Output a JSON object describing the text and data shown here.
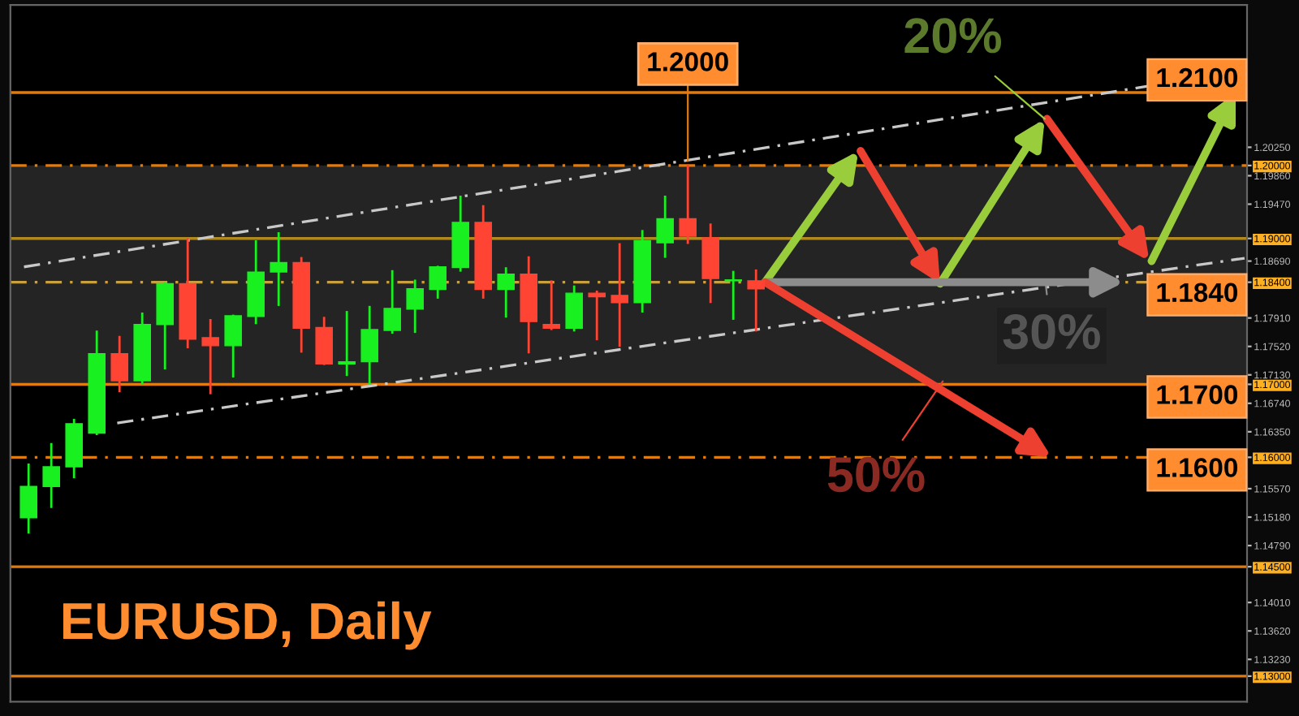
{
  "chart_data": {
    "type": "candlestick",
    "title": "EURUSD, Daily",
    "categories": [
      null,
      null,
      null,
      null,
      null,
      null,
      null,
      null,
      null,
      null,
      null,
      null,
      null,
      null,
      null,
      null,
      null,
      null,
      null,
      null,
      null,
      null,
      null,
      null,
      null,
      null,
      null,
      null,
      null,
      null,
      null,
      null,
      null,
      null,
      null,
      null,
      null,
      null,
      null,
      null,
      null,
      null,
      null,
      null,
      null,
      null,
      null,
      null,
      null,
      null,
      null,
      null,
      null,
      null
    ],
    "ohlc": [
      [
        1.1517,
        1.159,
        1.1497,
        1.156
      ],
      [
        1.156,
        1.1618,
        1.1532,
        1.1587
      ],
      [
        1.1587,
        1.1651,
        1.1573,
        1.1646
      ],
      [
        1.1633,
        1.1772,
        1.1632,
        1.1742
      ],
      [
        1.1742,
        1.1765,
        1.1691,
        1.1705
      ],
      [
        1.1705,
        1.1797,
        1.1702,
        1.1782
      ],
      [
        1.1782,
        1.1838,
        1.1722,
        1.1838
      ],
      [
        1.1838,
        1.1899,
        1.1751,
        1.1762
      ],
      [
        1.1764,
        1.1788,
        1.1688,
        1.1753
      ],
      [
        1.1753,
        1.1794,
        1.1711,
        1.1794
      ],
      [
        1.1793,
        1.1896,
        1.1784,
        1.1854
      ],
      [
        1.1854,
        1.1907,
        1.1809,
        1.1867
      ],
      [
        1.1867,
        1.1873,
        1.1745,
        1.1777
      ],
      [
        1.1778,
        1.1791,
        1.1728,
        1.1728
      ],
      [
        1.1728,
        1.1799,
        1.1713,
        1.1731
      ],
      [
        1.1731,
        1.1806,
        1.1701,
        1.1775
      ],
      [
        1.1774,
        1.1855,
        1.1771,
        1.1804
      ],
      [
        1.1803,
        1.1842,
        1.1772,
        1.1831
      ],
      [
        1.183,
        1.1861,
        1.1819,
        1.1861
      ],
      [
        1.186,
        1.1957,
        1.1856,
        1.1922
      ],
      [
        1.1922,
        1.1944,
        1.1819,
        1.183
      ],
      [
        1.183,
        1.1859,
        1.1793,
        1.1851
      ],
      [
        1.1851,
        1.1874,
        1.1744,
        1.1786
      ],
      [
        1.1782,
        1.1841,
        1.1776,
        1.1777
      ],
      [
        1.1777,
        1.1834,
        1.1774,
        1.1825
      ],
      [
        1.1825,
        1.1827,
        1.1762,
        1.182
      ],
      [
        1.1822,
        1.1892,
        1.1753,
        1.1812
      ],
      [
        1.1812,
        1.191,
        1.18,
        1.1897
      ],
      [
        1.1894,
        1.1957,
        1.1875,
        1.1927
      ],
      [
        1.1927,
        1.2,
        1.1894,
        1.1903
      ],
      [
        1.1901,
        1.1919,
        1.1813,
        1.1845
      ],
      [
        1.1842,
        1.1854,
        1.179,
        1.1843
      ],
      [
        1.1842,
        1.1856,
        1.1774,
        1.1831
      ],
      null,
      null,
      null,
      null,
      null,
      null,
      null,
      null,
      null,
      null,
      null,
      null,
      null,
      null,
      null,
      null,
      null,
      null,
      null,
      null,
      null
    ],
    "colors": [
      "#19f020",
      "#19f020",
      "#19f020",
      "#19f020",
      "#ff4433",
      "#19f020",
      "#19f020",
      "#ff4433",
      "#ff4433",
      "#19f020",
      "#19f020",
      "#19f020",
      "#ff4433",
      "#ff4433",
      "#19f020",
      "#19f020",
      "#19f020",
      "#19f020",
      "#19f020",
      "#19f020",
      "#ff4433",
      "#19f020",
      "#ff4433",
      "#ff4433",
      "#19f020",
      "#ff4433",
      "#ff4433",
      "#19f020",
      "#19f020",
      "#ff4433",
      "#ff4433",
      "#19f020",
      "#ff4433",
      null,
      null,
      null,
      null,
      null,
      null,
      null,
      null,
      null,
      null,
      null,
      null,
      null,
      null,
      null,
      null,
      null,
      null,
      null,
      null,
      null
    ],
    "ref_lines": [
      {
        "axis": "y",
        "value": 1.21,
        "label": "1.2100",
        "color": "#e07b12",
        "line_style": "solid"
      },
      {
        "axis": "y",
        "value": 1.2,
        "color": "#e07b12",
        "line_style": "dashed"
      },
      {
        "axis": "y",
        "value": 1.19,
        "color": "#b08a20",
        "line_style": "solid"
      },
      {
        "axis": "y",
        "value": 1.184,
        "label": "1.1840",
        "color": "#c8a040",
        "line_style": "dashed"
      },
      {
        "axis": "y",
        "value": 1.17,
        "label": "1.1700",
        "color": "#e07b12",
        "line_style": "solid"
      },
      {
        "axis": "y",
        "value": 1.16,
        "label": "1.1600",
        "color": "#e07b12",
        "line_style": "dashed"
      },
      {
        "axis": "y",
        "value": 1.145,
        "color": "#e07b12",
        "line_style": "solid"
      },
      {
        "axis": "y",
        "value": 1.13,
        "color": "#e07b12",
        "line_style": "solid"
      }
    ],
    "bands": [
      {
        "axis": "y",
        "from": 1.17,
        "to": 1.2,
        "color": "#242424"
      }
    ],
    "annotations": [
      {
        "text": "1.2000",
        "y": 1.2
      },
      "20%",
      "30%",
      "50%"
    ],
    "ylim": [
      1.1265,
      1.222
    ],
    "yticks": [
      {
        "value": 1.2025,
        "label": "1.20250"
      },
      {
        "value": 1.2,
        "label": "1.20000"
      },
      {
        "value": 1.1986,
        "label": "1.19860"
      },
      {
        "value": 1.1947,
        "label": "1.19470"
      },
      {
        "value": 1.19,
        "label": "1.19000"
      },
      {
        "value": 1.1869,
        "label": "1.18690"
      },
      {
        "value": 1.184,
        "label": "1.18400"
      },
      {
        "value": 1.1791,
        "label": "1.17910"
      },
      {
        "value": 1.1752,
        "label": "1.17520"
      },
      {
        "value": 1.1713,
        "label": "1.17130"
      },
      {
        "value": 1.17,
        "label": "1.17000"
      },
      {
        "value": 1.1674,
        "label": "1.16740"
      },
      {
        "value": 1.1635,
        "label": "1.16350"
      },
      {
        "value": 1.16,
        "label": "1.16000"
      },
      {
        "value": 1.1557,
        "label": "1.15570"
      },
      {
        "value": 1.1518,
        "label": "1.15180"
      },
      {
        "value": 1.1479,
        "label": "1.14790"
      },
      {
        "value": 1.145,
        "label": "1.14500"
      },
      {
        "value": 1.1401,
        "label": "1.14010"
      },
      {
        "value": 1.1362,
        "label": "1.13620"
      },
      {
        "value": 1.1323,
        "label": "1.13230"
      },
      {
        "value": 1.13,
        "label": "1.13000"
      }
    ],
    "tick_labels": "y",
    "grid": false,
    "legend": false
  }
}
